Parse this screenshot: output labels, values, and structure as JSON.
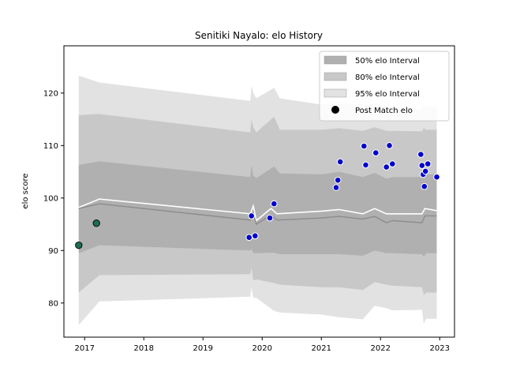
{
  "chart_data": {
    "type": "line",
    "title": "Senitiki Nayalo: elo History",
    "xlabel": "",
    "ylabel": "elo score",
    "xlim": [
      2016.65,
      2023.25
    ],
    "ylim": [
      73.5,
      129
    ],
    "x_ticks": [
      2017,
      2018,
      2019,
      2020,
      2021,
      2022,
      2023
    ],
    "x_tick_labels": [
      "2017",
      "2018",
      "2019",
      "2020",
      "2021",
      "2022",
      "2023"
    ],
    "y_ticks": [
      80,
      90,
      100,
      110,
      120
    ],
    "y_tick_labels": [
      "80",
      "90",
      "100",
      "110",
      "120"
    ],
    "grid": false,
    "legend_position": "top-right",
    "legend": [
      {
        "label": "50% elo Interval",
        "kind": "band",
        "color": "#b0b0b0"
      },
      {
        "label": "80% elo Interval",
        "kind": "band",
        "color": "#c8c8c8"
      },
      {
        "label": "95% elo Interval",
        "kind": "band",
        "color": "#e2e2e2"
      },
      {
        "label": "Post Match elo",
        "kind": "marker",
        "color": "#000000"
      }
    ],
    "colors": {
      "band50": "#b0b0b0",
      "band80": "#c8c8c8",
      "band95": "#e2e2e2",
      "mean_line": "#ffffff",
      "median_line": "#8c8c8c",
      "point_blue": "#0000cc",
      "point_green": "#1e6e50"
    },
    "series": [
      {
        "name": "95% elo Interval",
        "x": [
          2016.9,
          2017.25,
          2019.8,
          2019.82,
          2019.85,
          2019.9,
          2020.2,
          2020.3,
          2021.0,
          2021.3,
          2021.7,
          2021.9,
          2022.1,
          2022.2,
          2022.7,
          2022.73,
          2022.77,
          2022.95
        ],
        "upper": [
          123.3,
          122.0,
          118.5,
          121.5,
          120.0,
          119.0,
          121.0,
          119.0,
          117.8,
          118.2,
          117.5,
          118.0,
          117.5,
          117.0,
          116.8,
          118.0,
          117.5,
          117.3
        ],
        "lower": [
          75.8,
          80.3,
          81.2,
          83.0,
          81.0,
          81.0,
          78.5,
          78.2,
          77.8,
          77.3,
          76.9,
          79.5,
          79.0,
          78.6,
          78.7,
          76.0,
          77.0,
          77.0
        ]
      },
      {
        "name": "80% elo Interval",
        "x": [
          2016.9,
          2017.25,
          2019.8,
          2019.82,
          2019.85,
          2019.9,
          2020.2,
          2020.3,
          2021.0,
          2021.3,
          2021.7,
          2021.9,
          2022.1,
          2022.2,
          2022.7,
          2022.73,
          2022.77,
          2022.95
        ],
        "upper": [
          115.8,
          116.0,
          112.5,
          115.0,
          113.5,
          112.5,
          115.5,
          113.0,
          113.0,
          113.3,
          112.8,
          113.5,
          112.8,
          112.8,
          112.7,
          113.3,
          113.0,
          113.0
        ],
        "lower": [
          82.0,
          85.3,
          85.5,
          86.8,
          84.3,
          84.5,
          83.8,
          83.5,
          83.0,
          83.0,
          82.5,
          84.0,
          83.5,
          83.3,
          83.0,
          81.5,
          82.0,
          82.0
        ]
      },
      {
        "name": "50% elo Interval",
        "x": [
          2016.9,
          2017.25,
          2019.8,
          2019.82,
          2019.85,
          2019.9,
          2020.2,
          2020.3,
          2021.0,
          2021.3,
          2021.7,
          2021.9,
          2022.1,
          2022.2,
          2022.7,
          2022.73,
          2022.77,
          2022.95
        ],
        "upper": [
          106.3,
          107.0,
          104.0,
          106.3,
          104.3,
          103.8,
          106.0,
          104.7,
          104.5,
          105.0,
          104.0,
          104.8,
          103.7,
          104.0,
          104.0,
          105.0,
          104.5,
          104.5
        ],
        "lower": [
          89.5,
          91.0,
          90.0,
          90.3,
          89.5,
          89.5,
          89.6,
          89.3,
          89.3,
          89.3,
          89.0,
          90.0,
          89.5,
          89.5,
          89.3,
          88.8,
          89.5,
          89.5
        ]
      },
      {
        "name": "mean",
        "x": [
          2016.9,
          2017.25,
          2019.8,
          2019.85,
          2019.9,
          2020.15,
          2020.25,
          2021.0,
          2021.3,
          2021.7,
          2021.9,
          2022.1,
          2022.2,
          2022.7,
          2022.75,
          2022.95
        ],
        "y": [
          98.2,
          99.8,
          97.0,
          98.5,
          95.7,
          98.0,
          97.0,
          97.5,
          97.8,
          97.0,
          98.0,
          97.0,
          97.0,
          97.0,
          98.0,
          97.6
        ]
      },
      {
        "name": "median",
        "x": [
          2016.9,
          2017.25,
          2019.8,
          2019.85,
          2019.9,
          2020.15,
          2020.25,
          2021.0,
          2021.3,
          2021.7,
          2021.9,
          2022.1,
          2022.2,
          2022.7,
          2022.75,
          2022.95
        ],
        "y": [
          98.0,
          98.9,
          95.8,
          97.2,
          95.0,
          96.8,
          95.8,
          96.2,
          96.5,
          96.0,
          96.5,
          95.3,
          95.7,
          95.3,
          96.6,
          96.6
        ]
      }
    ],
    "points": [
      {
        "x": 2016.9,
        "y": 91.0,
        "color": "green"
      },
      {
        "x": 2017.2,
        "y": 95.2,
        "color": "green"
      },
      {
        "x": 2019.78,
        "y": 92.5,
        "color": "blue"
      },
      {
        "x": 2019.82,
        "y": 96.6,
        "color": "blue"
      },
      {
        "x": 2019.88,
        "y": 92.8,
        "color": "blue"
      },
      {
        "x": 2020.13,
        "y": 96.2,
        "color": "blue"
      },
      {
        "x": 2020.2,
        "y": 98.9,
        "color": "blue"
      },
      {
        "x": 2021.25,
        "y": 102.0,
        "color": "blue"
      },
      {
        "x": 2021.28,
        "y": 103.4,
        "color": "blue"
      },
      {
        "x": 2021.32,
        "y": 106.9,
        "color": "blue"
      },
      {
        "x": 2021.72,
        "y": 109.9,
        "color": "blue"
      },
      {
        "x": 2021.75,
        "y": 106.3,
        "color": "blue"
      },
      {
        "x": 2021.92,
        "y": 108.6,
        "color": "blue"
      },
      {
        "x": 2022.1,
        "y": 105.9,
        "color": "blue"
      },
      {
        "x": 2022.15,
        "y": 110.0,
        "color": "blue"
      },
      {
        "x": 2022.2,
        "y": 106.5,
        "color": "blue"
      },
      {
        "x": 2022.68,
        "y": 108.3,
        "color": "blue"
      },
      {
        "x": 2022.7,
        "y": 106.2,
        "color": "blue"
      },
      {
        "x": 2022.72,
        "y": 104.5,
        "color": "blue"
      },
      {
        "x": 2022.74,
        "y": 102.2,
        "color": "blue"
      },
      {
        "x": 2022.76,
        "y": 105.1,
        "color": "blue"
      },
      {
        "x": 2022.8,
        "y": 106.5,
        "color": "blue"
      },
      {
        "x": 2022.95,
        "y": 104.0,
        "color": "blue"
      }
    ]
  }
}
